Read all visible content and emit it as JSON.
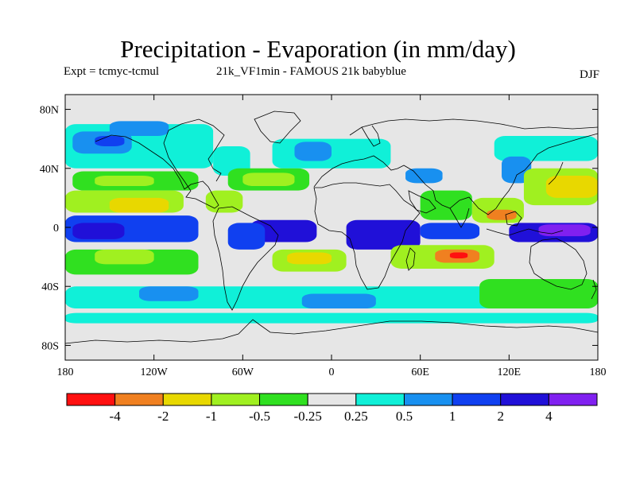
{
  "chart_data": {
    "type": "heatmap",
    "title": "Precipitation - Evaporation (in mm/day)",
    "subtitle_left": "Expt = tcmyc-tcmul",
    "subtitle_center": "21k_VF1min - FAMOUS 21k babyblue",
    "season": "DJF",
    "x_range": [
      -180,
      180
    ],
    "y_range": [
      -90,
      90
    ],
    "x_ticks": [
      {
        "value": -180,
        "label": "180"
      },
      {
        "value": -120,
        "label": "120W"
      },
      {
        "value": -60,
        "label": "60W"
      },
      {
        "value": 0,
        "label": "0"
      },
      {
        "value": 60,
        "label": "60E"
      },
      {
        "value": 120,
        "label": "120E"
      },
      {
        "value": 180,
        "label": "180"
      }
    ],
    "y_ticks": [
      {
        "value": 80,
        "label": "80N"
      },
      {
        "value": 40,
        "label": "40N"
      },
      {
        "value": 0,
        "label": "0"
      },
      {
        "value": -40,
        "label": "40S"
      },
      {
        "value": -80,
        "label": "80S"
      }
    ],
    "colorbar": {
      "colors": [
        "#ff1010",
        "#f08020",
        "#e8d800",
        "#a0f020",
        "#30e020",
        "#e6e6e6",
        "#10f0d8",
        "#1890f0",
        "#1040f0",
        "#2010d8",
        "#8020f0"
      ],
      "labels": [
        "-4",
        "-2",
        "-1",
        "-0.5",
        "-0.25",
        "0.25",
        "0.5",
        "1",
        "2",
        "4"
      ]
    },
    "regions": [
      {
        "lon_min": -180,
        "lon_max": 180,
        "lat_min": -90,
        "lat_max": 90,
        "level": 5
      },
      {
        "lon_min": -180,
        "lon_max": -80,
        "lat_min": 40,
        "lat_max": 70,
        "level": 6
      },
      {
        "lon_min": -175,
        "lon_max": -135,
        "lat_min": 50,
        "lat_max": 65,
        "level": 7
      },
      {
        "lon_min": -160,
        "lon_max": -140,
        "lat_min": 55,
        "lat_max": 62,
        "level": 8
      },
      {
        "lon_min": -150,
        "lon_max": -110,
        "lat_min": 62,
        "lat_max": 72,
        "level": 7
      },
      {
        "lon_min": -80,
        "lon_max": -55,
        "lat_min": 35,
        "lat_max": 55,
        "level": 6
      },
      {
        "lon_min": -40,
        "lon_max": 40,
        "lat_min": 40,
        "lat_max": 60,
        "level": 6
      },
      {
        "lon_min": -25,
        "lon_max": 0,
        "lat_min": 45,
        "lat_max": 58,
        "level": 7
      },
      {
        "lon_min": 50,
        "lon_max": 75,
        "lat_min": 30,
        "lat_max": 40,
        "level": 7
      },
      {
        "lon_min": 110,
        "lon_max": 180,
        "lat_min": 45,
        "lat_max": 62,
        "level": 6
      },
      {
        "lon_min": 115,
        "lon_max": 135,
        "lat_min": 30,
        "lat_max": 48,
        "level": 7
      },
      {
        "lon_min": -175,
        "lon_max": -90,
        "lat_min": 25,
        "lat_max": 38,
        "level": 4
      },
      {
        "lon_min": -160,
        "lon_max": -120,
        "lat_min": 28,
        "lat_max": 35,
        "level": 3
      },
      {
        "lon_min": -70,
        "lon_max": -15,
        "lat_min": 25,
        "lat_max": 40,
        "level": 4
      },
      {
        "lon_min": -60,
        "lon_max": -25,
        "lat_min": 28,
        "lat_max": 37,
        "level": 3
      },
      {
        "lon_min": -85,
        "lon_max": -60,
        "lat_min": 10,
        "lat_max": 25,
        "level": 3
      },
      {
        "lon_min": 130,
        "lon_max": 180,
        "lat_min": 15,
        "lat_max": 40,
        "level": 3
      },
      {
        "lon_min": 145,
        "lon_max": 180,
        "lat_min": 20,
        "lat_max": 35,
        "level": 2
      },
      {
        "lon_min": -180,
        "lon_max": -100,
        "lat_min": 10,
        "lat_max": 25,
        "level": 3
      },
      {
        "lon_min": -150,
        "lon_max": -110,
        "lat_min": 10,
        "lat_max": 20,
        "level": 2
      },
      {
        "lon_min": 60,
        "lon_max": 95,
        "lat_min": 5,
        "lat_max": 25,
        "level": 4
      },
      {
        "lon_min": 95,
        "lon_max": 130,
        "lat_min": 3,
        "lat_max": 20,
        "level": 3
      },
      {
        "lon_min": 105,
        "lon_max": 125,
        "lat_min": 5,
        "lat_max": 12,
        "level": 1
      },
      {
        "lon_min": -180,
        "lon_max": -90,
        "lat_min": -10,
        "lat_max": 8,
        "level": 8
      },
      {
        "lon_min": -175,
        "lon_max": -140,
        "lat_min": -8,
        "lat_max": 3,
        "level": 9
      },
      {
        "lon_min": -55,
        "lon_max": -10,
        "lat_min": -10,
        "lat_max": 5,
        "level": 9
      },
      {
        "lon_min": -70,
        "lon_max": -45,
        "lat_min": -15,
        "lat_max": 3,
        "level": 8
      },
      {
        "lon_min": 10,
        "lon_max": 60,
        "lat_min": -15,
        "lat_max": 5,
        "level": 9
      },
      {
        "lon_min": 60,
        "lon_max": 100,
        "lat_min": -8,
        "lat_max": 3,
        "level": 8
      },
      {
        "lon_min": 120,
        "lon_max": 180,
        "lat_min": -10,
        "lat_max": 3,
        "level": 9
      },
      {
        "lon_min": 140,
        "lon_max": 175,
        "lat_min": -6,
        "lat_max": 2,
        "level": 10
      },
      {
        "lon_min": -180,
        "lon_max": -90,
        "lat_min": -32,
        "lat_max": -15,
        "level": 4
      },
      {
        "lon_min": -160,
        "lon_max": -120,
        "lat_min": -25,
        "lat_max": -15,
        "level": 3
      },
      {
        "lon_min": -40,
        "lon_max": 10,
        "lat_min": -30,
        "lat_max": -15,
        "level": 3
      },
      {
        "lon_min": -30,
        "lon_max": 0,
        "lat_min": -25,
        "lat_max": -17,
        "level": 2
      },
      {
        "lon_min": 40,
        "lon_max": 110,
        "lat_min": -28,
        "lat_max": -12,
        "level": 3
      },
      {
        "lon_min": 70,
        "lon_max": 100,
        "lat_min": -24,
        "lat_max": -15,
        "level": 1
      },
      {
        "lon_min": 80,
        "lon_max": 92,
        "lat_min": -21,
        "lat_max": -17,
        "level": 0
      },
      {
        "lon_min": -180,
        "lon_max": 180,
        "lat_min": -55,
        "lat_max": -40,
        "level": 6
      },
      {
        "lon_min": -130,
        "lon_max": -90,
        "lat_min": -50,
        "lat_max": -40,
        "level": 7
      },
      {
        "lon_min": -20,
        "lon_max": 30,
        "lat_min": -55,
        "lat_max": -45,
        "level": 7
      },
      {
        "lon_min": 100,
        "lon_max": 180,
        "lat_min": -55,
        "lat_max": -35,
        "level": 4
      },
      {
        "lon_min": -180,
        "lon_max": 180,
        "lat_min": -65,
        "lat_max": -58,
        "level": 6
      }
    ]
  }
}
